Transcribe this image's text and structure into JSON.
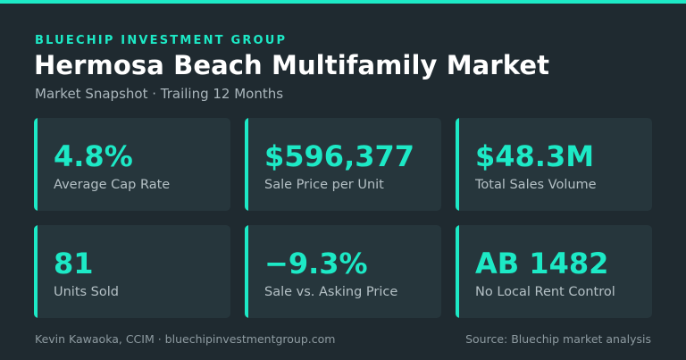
{
  "header": {
    "eyebrow": "BLUECHIP INVESTMENT GROUP",
    "title": "Hermosa Beach Multifamily Market",
    "subtitle": "Market Snapshot · Trailing 12 Months"
  },
  "metrics": [
    {
      "value": "4.8%",
      "label": "Average Cap Rate"
    },
    {
      "value": "$596,377",
      "label": "Sale Price per Unit"
    },
    {
      "value": "$48.3M",
      "label": "Total Sales Volume"
    },
    {
      "value": "81",
      "label": "Units Sold"
    },
    {
      "value": "−9.3%",
      "label": "Sale vs. Asking Price"
    },
    {
      "value": "AB 1482",
      "label": "No Local Rent Control"
    }
  ],
  "footer": {
    "credit": "Kevin Kawaoka, CCIM · bluechipinvestmentgroup.com",
    "source": "Source: Bluechip market analysis"
  },
  "colors": {
    "background": "#1f2a30",
    "card": "#26363c",
    "accent": "#1de9c6"
  }
}
